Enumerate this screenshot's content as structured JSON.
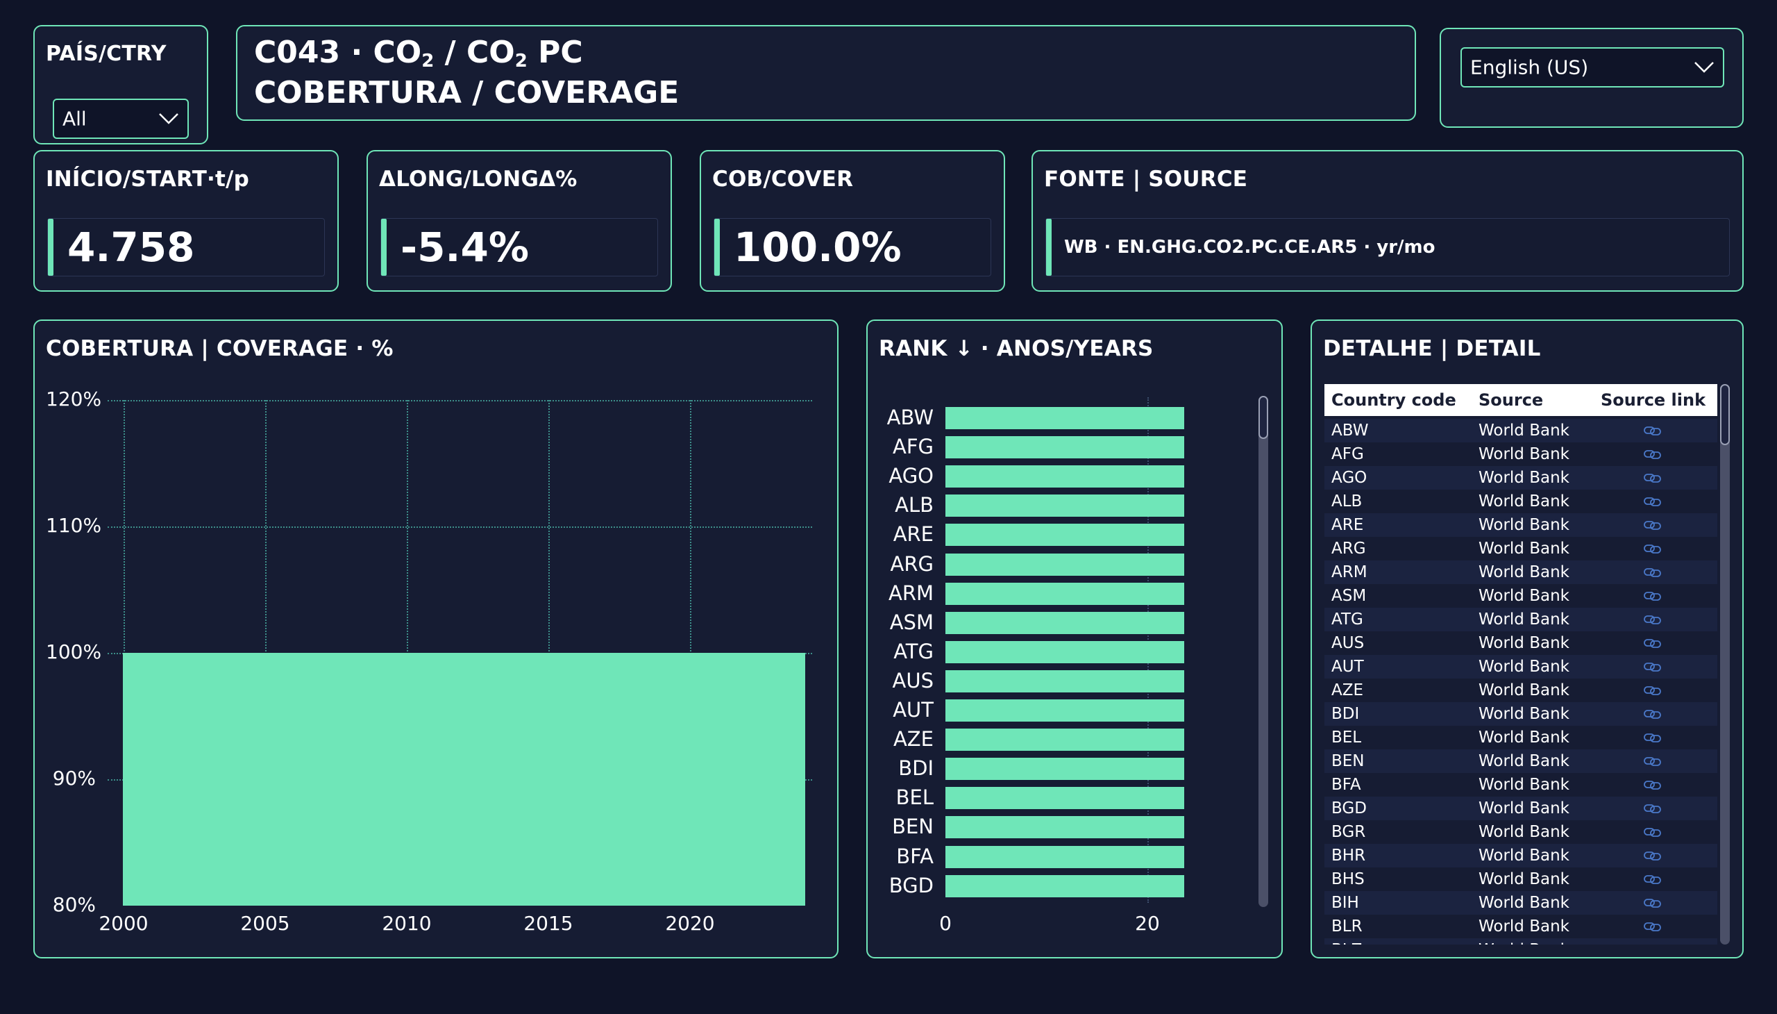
{
  "slicer": {
    "label": "PAÍS/CTRY",
    "value": "All"
  },
  "header": {
    "code": "C043 · CO",
    "sub1": "2",
    "mid": " / CO",
    "sub2": "2",
    "tail": " PC",
    "line2": "COBERTURA / COVERAGE"
  },
  "language": {
    "value": "English (US)"
  },
  "kpis": {
    "start": {
      "label": "INÍCIO/START·t/p",
      "value": "4.758"
    },
    "delta": {
      "label": "ΔLONG/LONGΔ%",
      "value": "-5.4%"
    },
    "cover": {
      "label": "COB/COVER",
      "value": "100.0%"
    },
    "source": {
      "label": "FONTE | SOURCE",
      "value": "WB · EN.GHG.CO2.PC.CE.AR5 · yr/mo"
    }
  },
  "coverage_chart": {
    "title": "COBERTURA | COVERAGE · %",
    "y_ticks": [
      "120%",
      "110%",
      "100%",
      "90%",
      "80%"
    ],
    "x_ticks": [
      "2000",
      "2005",
      "2010",
      "2015",
      "2020"
    ]
  },
  "rank_chart": {
    "title": "RANK ↓ · ANOS/YEARS",
    "x_ticks": [
      "0",
      "20"
    ]
  },
  "detail_table": {
    "title": "DETALHE | DETAIL",
    "columns": [
      "Country code",
      "Source",
      "Source link"
    ],
    "rows": [
      [
        "ABW",
        "World Bank"
      ],
      [
        "AFG",
        "World Bank"
      ],
      [
        "AGO",
        "World Bank"
      ],
      [
        "ALB",
        "World Bank"
      ],
      [
        "ARE",
        "World Bank"
      ],
      [
        "ARG",
        "World Bank"
      ],
      [
        "ARM",
        "World Bank"
      ],
      [
        "ASM",
        "World Bank"
      ],
      [
        "ATG",
        "World Bank"
      ],
      [
        "AUS",
        "World Bank"
      ],
      [
        "AUT",
        "World Bank"
      ],
      [
        "AZE",
        "World Bank"
      ],
      [
        "BDI",
        "World Bank"
      ],
      [
        "BEL",
        "World Bank"
      ],
      [
        "BEN",
        "World Bank"
      ],
      [
        "BFA",
        "World Bank"
      ],
      [
        "BGD",
        "World Bank"
      ],
      [
        "BGR",
        "World Bank"
      ],
      [
        "BHR",
        "World Bank"
      ],
      [
        "BHS",
        "World Bank"
      ],
      [
        "BIH",
        "World Bank"
      ],
      [
        "BLR",
        "World Bank"
      ],
      [
        "BLZ",
        "World Bank"
      ]
    ],
    "link_icon": "link-icon"
  },
  "chart_data": [
    {
      "type": "area",
      "title": "COBERTURA | COVERAGE · %",
      "x": [
        2000,
        2001,
        2002,
        2003,
        2004,
        2005,
        2006,
        2007,
        2008,
        2009,
        2010,
        2011,
        2012,
        2013,
        2014,
        2015,
        2016,
        2017,
        2018,
        2019,
        2020,
        2021,
        2022,
        2023,
        2024
      ],
      "values": [
        100,
        100,
        100,
        100,
        100,
        100,
        100,
        100,
        100,
        100,
        100,
        100,
        100,
        100,
        100,
        100,
        100,
        100,
        100,
        100,
        100,
        100,
        100,
        100,
        100
      ],
      "ylim": [
        80,
        120
      ],
      "xlim": [
        2000,
        2024
      ],
      "grid": true,
      "color": "#6fe6b8"
    },
    {
      "type": "bar",
      "orientation": "horizontal",
      "title": "RANK ↓ · ANOS/YEARS",
      "categories": [
        "ABW",
        "AFG",
        "AGO",
        "ALB",
        "ARE",
        "ARG",
        "ARM",
        "ASM",
        "ATG",
        "AUS",
        "AUT",
        "AZE",
        "BDI",
        "BEL",
        "BEN",
        "BFA",
        "BGD"
      ],
      "values": [
        25,
        25,
        25,
        25,
        25,
        25,
        25,
        25,
        25,
        25,
        25,
        25,
        25,
        25,
        25,
        25,
        25
      ],
      "xlim": [
        0,
        28
      ],
      "color": "#6fe6b8"
    }
  ]
}
